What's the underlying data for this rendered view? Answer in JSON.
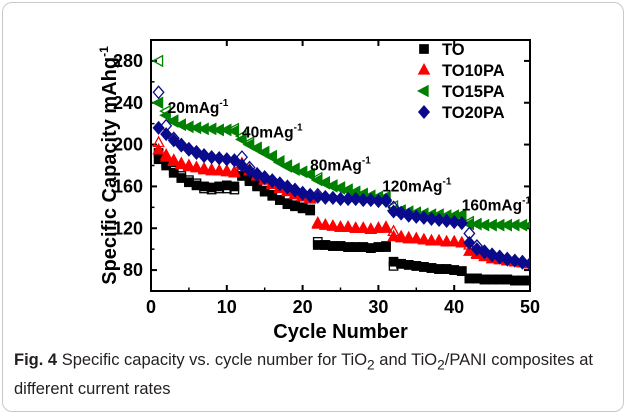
{
  "chart_data": {
    "type": "scatter",
    "xlabel": "Cycle Number",
    "ylabel": "Specific Capacity mAhg",
    "ylabel_superscript": "-1",
    "xlim": [
      0,
      50
    ],
    "ylim": [
      60,
      300
    ],
    "xticks": [
      0,
      10,
      20,
      30,
      40,
      50
    ],
    "yticks": [
      80,
      120,
      160,
      200,
      240,
      280
    ],
    "legend_position": "top-right",
    "annotations": [
      {
        "text": "20mAg",
        "sup": "-1",
        "x": 2.2,
        "y": 230
      },
      {
        "text": "40mAg",
        "sup": "-1",
        "x": 12.0,
        "y": 207
      },
      {
        "text": "80mAg",
        "sup": "-1",
        "x": 21.0,
        "y": 175
      },
      {
        "text": "120mAg",
        "sup": "-1",
        "x": 30.5,
        "y": 155
      },
      {
        "text": "160mAg",
        "sup": "-1",
        "x": 41.0,
        "y": 137
      }
    ],
    "series": [
      {
        "name": "TO",
        "marker": "square",
        "color": "#000000",
        "charge": [
          186,
          180,
          173,
          168,
          164,
          161,
          160,
          159,
          160,
          161,
          160,
          170,
          165,
          160,
          155,
          151,
          147,
          144,
          142,
          140,
          138,
          104,
          104,
          103,
          103,
          102,
          102,
          102,
          101,
          102,
          102,
          88,
          86,
          85,
          84,
          83,
          82,
          81,
          81,
          80,
          79,
          72,
          72,
          71,
          71,
          71,
          71,
          70,
          70,
          70
        ],
        "discharge": [
          192,
          183,
          175,
          170,
          166,
          163,
          158,
          157,
          158,
          158,
          157,
          173,
          166,
          161,
          156,
          152,
          147,
          143,
          141,
          139,
          137,
          107,
          104,
          103,
          103,
          102,
          102,
          102,
          101,
          102,
          103,
          84,
          86,
          85,
          84,
          83,
          82,
          81,
          81,
          80,
          79,
          72,
          72,
          71,
          71,
          71,
          71,
          70,
          70,
          70
        ]
      },
      {
        "name": "TO10PA",
        "marker": "triangle-up",
        "color": "#ff0000",
        "charge": [
          195,
          188,
          184,
          181,
          179,
          178,
          177,
          176,
          175,
          175,
          174,
          180,
          175,
          170,
          166,
          162,
          158,
          155,
          152,
          150,
          148,
          124,
          123,
          122,
          121,
          121,
          120,
          120,
          119,
          120,
          120,
          112,
          111,
          110,
          110,
          109,
          108,
          108,
          107,
          107,
          106,
          98,
          95,
          93,
          91,
          90,
          89,
          88,
          87,
          86
        ],
        "discharge": [
          202,
          190,
          185,
          182,
          180,
          178,
          176,
          175,
          175,
          174,
          173,
          182,
          176,
          171,
          167,
          163,
          159,
          156,
          153,
          151,
          149,
          125,
          123,
          122,
          121,
          121,
          120,
          120,
          119,
          120,
          121,
          117,
          112,
          111,
          110,
          109,
          108,
          108,
          107,
          107,
          106,
          104,
          96,
          93,
          91,
          90,
          89,
          88,
          87,
          86
        ]
      },
      {
        "name": "TO15PA",
        "marker": "triangle-left",
        "color": "#008000",
        "charge": [
          240,
          228,
          222,
          219,
          217,
          216,
          215,
          215,
          214,
          214,
          213,
          205,
          200,
          196,
          192,
          188,
          183,
          179,
          176,
          174,
          171,
          166,
          163,
          160,
          158,
          156,
          154,
          152,
          151,
          150,
          149,
          137,
          136,
          135,
          134,
          133,
          133,
          133,
          132,
          132,
          132,
          124,
          124,
          123,
          123,
          123,
          123,
          123,
          123,
          123
        ],
        "discharge": [
          280,
          232,
          223,
          219,
          217,
          216,
          215,
          215,
          214,
          214,
          215,
          208,
          202,
          197,
          193,
          189,
          184,
          180,
          177,
          174,
          172,
          168,
          164,
          161,
          159,
          157,
          155,
          153,
          151,
          150,
          150,
          141,
          137,
          136,
          135,
          134,
          133,
          133,
          132,
          132,
          133,
          126,
          124,
          123,
          123,
          123,
          123,
          123,
          123,
          123
        ]
      },
      {
        "name": "TO20PA",
        "marker": "diamond",
        "color": "#0a0a8c",
        "charge": [
          216,
          210,
          204,
          199,
          195,
          192,
          189,
          188,
          187,
          186,
          185,
          180,
          175,
          171,
          168,
          165,
          162,
          159,
          156,
          153,
          151,
          150,
          149,
          149,
          148,
          148,
          148,
          147,
          147,
          146,
          146,
          136,
          134,
          132,
          131,
          130,
          129,
          128,
          127,
          126,
          125,
          106,
          100,
          97,
          94,
          92,
          90,
          89,
          87,
          86
        ],
        "discharge": [
          250,
          218,
          206,
          200,
          196,
          193,
          190,
          188,
          187,
          186,
          185,
          188,
          178,
          172,
          169,
          166,
          163,
          160,
          157,
          154,
          152,
          152,
          150,
          149,
          148,
          148,
          148,
          147,
          147,
          146,
          147,
          140,
          135,
          133,
          131,
          130,
          129,
          128,
          127,
          126,
          125,
          115,
          103,
          98,
          95,
          93,
          91,
          89,
          88,
          86
        ]
      }
    ]
  },
  "caption": {
    "fig_label": "Fig. 4",
    "text_1": "Specific capacity vs. cycle number for TiO",
    "sub_1": "2",
    "text_2": " and TiO",
    "sub_2": "2",
    "text_3": "/PANI composites at different current rates"
  }
}
